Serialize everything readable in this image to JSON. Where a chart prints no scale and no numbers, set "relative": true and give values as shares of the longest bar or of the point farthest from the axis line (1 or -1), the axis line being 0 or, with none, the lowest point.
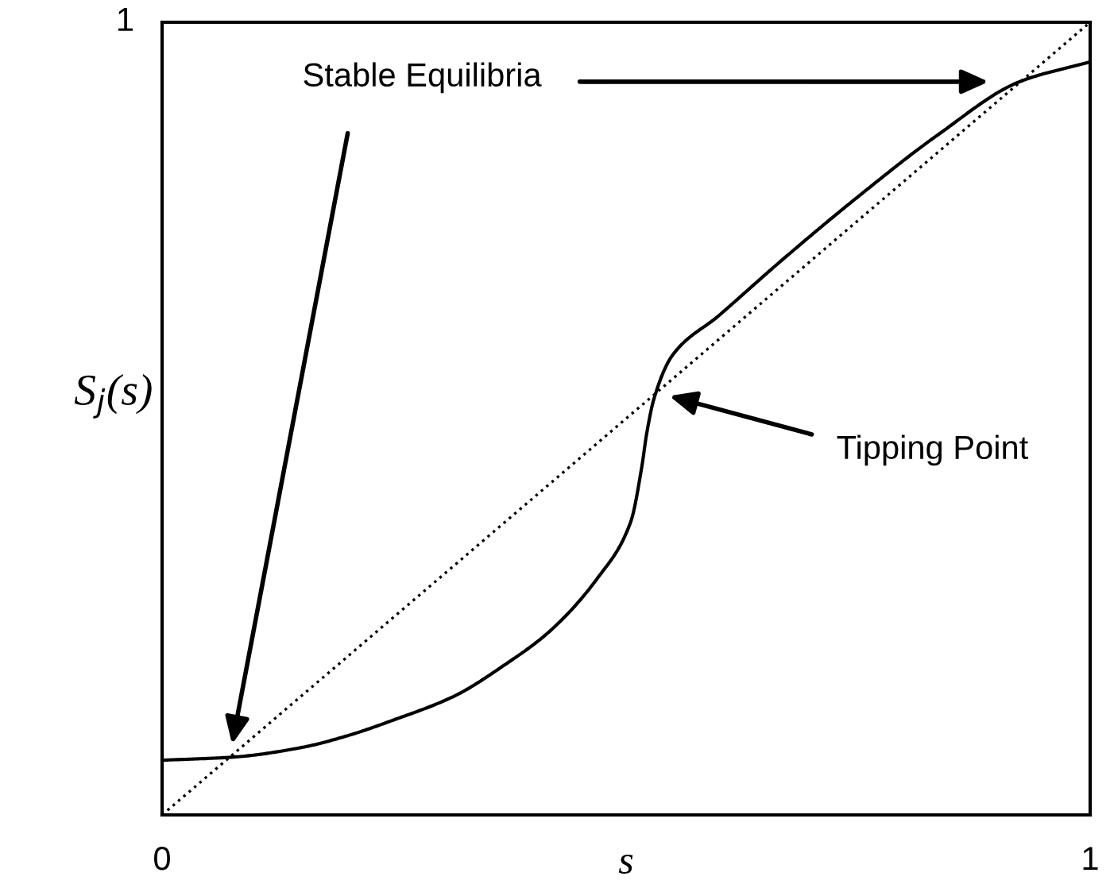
{
  "chart_data": {
    "type": "line",
    "xlabel": "s",
    "ylabel": "S$_{j}$(s)",
    "xlim": [
      0,
      1
    ],
    "xticks": [
      0,
      1
    ],
    "relative": true,
    "legend": false,
    "series": [
      {
        "color": "#000000",
        "line_style": "solid",
        "x": [
          0,
          0.077,
          0.15,
          0.2,
          0.25,
          0.315,
          0.37,
          0.416,
          0.47,
          0.505,
          0.517,
          0.522,
          0.53,
          0.55,
          0.6,
          0.668,
          0.75,
          0.836,
          0.924,
          1
        ],
        "values": [
          0.069,
          0.073,
          0.085,
          0.1,
          0.12,
          0.15,
          0.19,
          0.23,
          0.3,
          0.37,
          0.44,
          0.48,
          0.525,
          0.58,
          0.63,
          0.7,
          0.78,
          0.858,
          0.925,
          0.95
        ]
      },
      {
        "color": "#000000",
        "line_style": "dotted",
        "x": [
          0,
          1
        ],
        "values": [
          0,
          1
        ]
      }
    ],
    "annotations": [
      "Stable Equilibria",
      "Tipping Point",
      "1"
    ]
  }
}
